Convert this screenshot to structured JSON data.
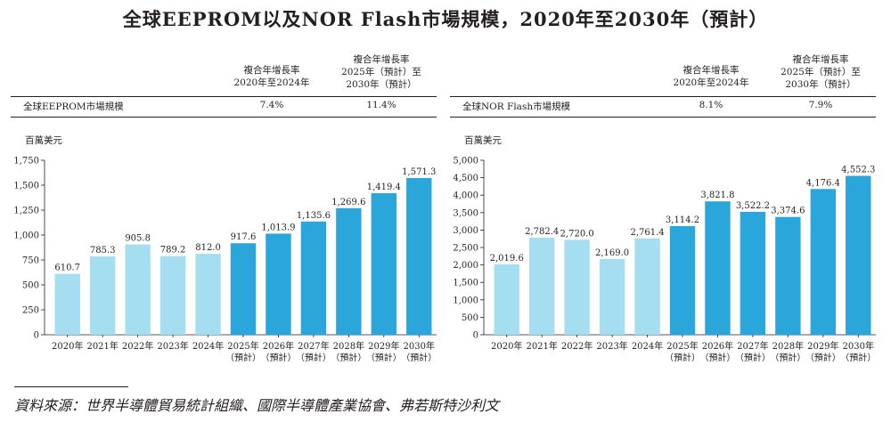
{
  "title": "全球EEPROM以及NOR Flash市場規模，2020年至2030年（預計）",
  "colors": {
    "historical": "#a6def1",
    "forecast": "#2aa6da",
    "axis": "#231f20"
  },
  "source": "資料來源：世界半導體貿易統計組織、國際半導體產業協會、弗若斯特沙利文",
  "chart_data": [
    {
      "type": "bar",
      "cagr_table": {
        "header_1": [
          "複合年增長率",
          "2020年至2024年"
        ],
        "header_2": [
          "複合年增長率",
          "2025年（預計）至",
          "2030年（預計）"
        ],
        "row_label": "全球EEPROM市場規模",
        "value_1": "7.4%",
        "value_2": "11.4%"
      },
      "ylabel": "百萬美元",
      "ylim": [
        0,
        1750
      ],
      "yticks": [
        0,
        250,
        500,
        750,
        1000,
        1250,
        1500,
        1750
      ],
      "ytick_labels": [
        "0",
        "250",
        "500",
        "750",
        "1,000",
        "1,250",
        "1,500",
        "1,750"
      ],
      "categories": [
        [
          "2020年"
        ],
        [
          "2021年"
        ],
        [
          "2022年"
        ],
        [
          "2023年"
        ],
        [
          "2024年"
        ],
        [
          "2025年",
          "（預計）"
        ],
        [
          "2026年",
          "（預計）"
        ],
        [
          "2027年",
          "（預計）"
        ],
        [
          "2028年",
          "（預計）"
        ],
        [
          "2029年",
          "（預計）"
        ],
        [
          "2030年",
          "（預計）"
        ]
      ],
      "values": [
        610.7,
        785.3,
        905.8,
        789.2,
        812.0,
        917.6,
        1013.9,
        1135.6,
        1269.6,
        1419.4,
        1571.3
      ],
      "value_labels": [
        "610.7",
        "785.3",
        "905.8",
        "789.2",
        "812.0",
        "917.6",
        "1,013.9",
        "1,135.6",
        "1,269.6",
        "1,419.4",
        "1,571.3"
      ],
      "forecast_from_index": 5
    },
    {
      "type": "bar",
      "cagr_table": {
        "header_1": [
          "複合年增長率",
          "2020年至2024年"
        ],
        "header_2": [
          "複合年增長率",
          "2025年（預計）至",
          "2030年（預計）"
        ],
        "row_label": "全球NOR Flash市場規模",
        "value_1": "8.1%",
        "value_2": "7.9%"
      },
      "ylabel": "百萬美元",
      "ylim": [
        0,
        5000
      ],
      "yticks": [
        0,
        500,
        1000,
        1500,
        2000,
        2500,
        3000,
        3500,
        4000,
        4500,
        5000
      ],
      "ytick_labels": [
        "0",
        "500",
        "1,000",
        "1,500",
        "2,000",
        "2,500",
        "3,000",
        "3,500",
        "4,000",
        "4,500",
        "5,000"
      ],
      "categories": [
        [
          "2020年"
        ],
        [
          "2021年"
        ],
        [
          "2022年"
        ],
        [
          "2023年"
        ],
        [
          "2024年"
        ],
        [
          "2025年",
          "（預計）"
        ],
        [
          "2026年",
          "（預計）"
        ],
        [
          "2027年",
          "（預計）"
        ],
        [
          "2028年",
          "（預計）"
        ],
        [
          "2029年",
          "（預計）"
        ],
        [
          "2030年",
          "（預計）"
        ]
      ],
      "values": [
        2019.6,
        2782.4,
        2720.0,
        2169.0,
        2761.4,
        3114.2,
        3821.8,
        3522.2,
        3374.6,
        4176.4,
        4552.3
      ],
      "value_labels": [
        "2,019.6",
        "2,782.4",
        "2,720.0",
        "2,169.0",
        "2,761.4",
        "3,114.2",
        "3,821.8",
        "3,522.2",
        "3,374.6",
        "4,176.4",
        "4,552.3"
      ],
      "forecast_from_index": 5
    }
  ]
}
